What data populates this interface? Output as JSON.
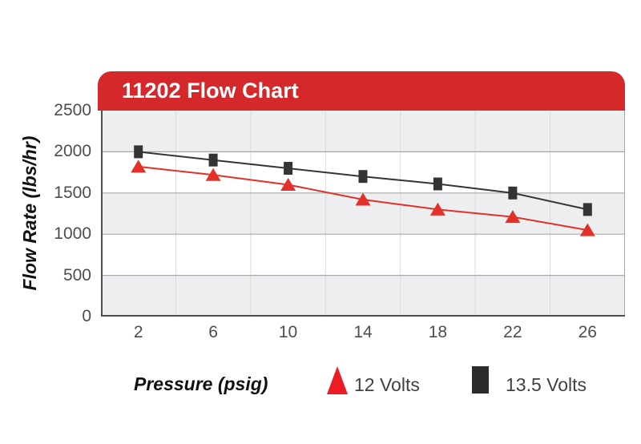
{
  "banner": {
    "title": "11202 Flow Chart"
  },
  "chart_data": {
    "type": "line",
    "x": [
      2,
      6,
      10,
      14,
      18,
      22,
      26
    ],
    "x_tick_labels": [
      "2",
      "6",
      "10",
      "14",
      "18",
      "22",
      "26"
    ],
    "series": [
      {
        "name": "12 Volts",
        "marker": "triangle",
        "color": "#e23128",
        "values": [
          1820,
          1720,
          1600,
          1420,
          1300,
          1210,
          1050
        ]
      },
      {
        "name": "13.5 Volts",
        "marker": "square",
        "color": "#343434",
        "values": [
          2000,
          1900,
          1800,
          1700,
          1610,
          1500,
          1300
        ]
      }
    ],
    "xlabel": "Pressure (psig)",
    "ylabel": "Flow Rate (lbs/hr)",
    "ylim": [
      0,
      2500
    ],
    "yticks": [
      2500,
      2000,
      1500,
      1000,
      500,
      0
    ],
    "grid": "horizontal gridlines every 500, faint vertical gridlines between categories, alternating shaded bands",
    "legend_position": "bottom"
  },
  "legend": {
    "items": [
      {
        "label": "12 Volts",
        "marker": "triangle",
        "color": "#ed1c24"
      },
      {
        "label": "13.5 Volts",
        "marker": "square",
        "color": "#2b2b2b"
      }
    ]
  },
  "colors": {
    "banner_red": "#d5282b",
    "band_gray": "#eceef0",
    "grid_horizontal": "#a6a8ab",
    "grid_vertical": "#d8dadc",
    "axis_dark": "#4d4d4f",
    "tick_text": "#4d4d4f"
  }
}
